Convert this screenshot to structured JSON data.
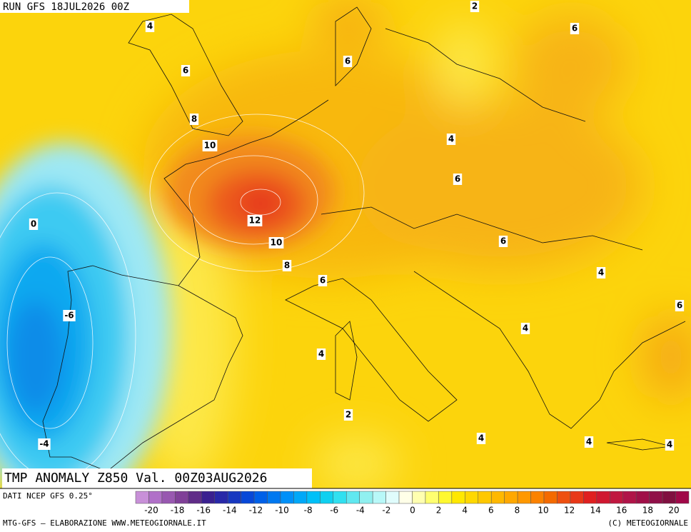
{
  "header": {
    "run": "RUN GFS 18JUL2026 00Z"
  },
  "map": {
    "contour_labels": [
      4,
      2,
      6,
      6,
      6,
      8,
      10,
      4,
      6,
      12,
      10,
      0,
      6,
      8,
      6,
      4,
      -6,
      6,
      4,
      4,
      2,
      -4,
      4,
      4,
      4
    ]
  },
  "title": "TMP ANOMALY Z850 Val. 00Z03AUG2026",
  "footer": {
    "source": "DATI NCEP GFS 0.25°",
    "credit": "MTG-GFS – ELABORAZIONE WWW.METEOGIORNALE.IT",
    "copyright": "(C) METEOGIORNALE"
  },
  "colorbar": {
    "ticks": [
      -20,
      -18,
      -16,
      -14,
      -12,
      -10,
      -8,
      -6,
      -4,
      -2,
      0,
      2,
      4,
      6,
      8,
      10,
      12,
      14,
      16,
      18,
      20
    ],
    "colors": [
      "#c890d8",
      "#b070c8",
      "#9858b0",
      "#804098",
      "#602c88",
      "#3a2090",
      "#2828a8",
      "#1838c0",
      "#0848d8",
      "#0060e8",
      "#0078f0",
      "#0090f8",
      "#00a8f8",
      "#00c0f8",
      "#10d0f0",
      "#30e0f0",
      "#60e8f0",
      "#90f0f0",
      "#b8f8f8",
      "#e0fcfc",
      "#ffffe8",
      "#ffffb0",
      "#ffff70",
      "#fff830",
      "#ffe800",
      "#ffd800",
      "#ffc800",
      "#ffb800",
      "#ffa800",
      "#ff9800",
      "#fb8200",
      "#f46a00",
      "#ee5010",
      "#e83818",
      "#e02020",
      "#d01830",
      "#c01840",
      "#b01448",
      "#a01048",
      "#901048",
      "#801040",
      "#a00848"
    ]
  }
}
